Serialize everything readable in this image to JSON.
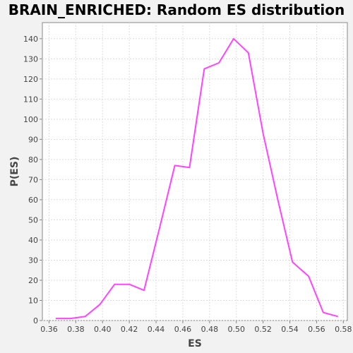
{
  "chart_data": {
    "type": "line",
    "title": "BRAIN_ENRICHED: Random ES distribution",
    "xlabel": "ES",
    "ylabel": "P(ES)",
    "xlim": [
      0.355,
      0.583
    ],
    "ylim": [
      0,
      148
    ],
    "xticks": [
      "0.36",
      "0.38",
      "0.40",
      "0.42",
      "0.44",
      "0.46",
      "0.48",
      "0.50",
      "0.52",
      "0.54",
      "0.56",
      "0.58"
    ],
    "yticks": [
      "0",
      "10",
      "20",
      "30",
      "40",
      "50",
      "60",
      "70",
      "80",
      "90",
      "100",
      "110",
      "120",
      "130",
      "140"
    ],
    "grid": true,
    "series": [
      {
        "color": "#ff44ff",
        "x": [
          0.365,
          0.376,
          0.387,
          0.398,
          0.409,
          0.42,
          0.431,
          0.443,
          0.454,
          0.465,
          0.476,
          0.487,
          0.498,
          0.509,
          0.52,
          0.531,
          0.542,
          0.554,
          0.565,
          0.576
        ],
        "y": [
          1,
          1,
          2,
          8,
          18,
          18,
          15,
          47,
          77,
          76,
          125,
          128,
          140,
          133,
          93,
          60,
          29,
          22,
          4,
          2
        ]
      }
    ]
  }
}
